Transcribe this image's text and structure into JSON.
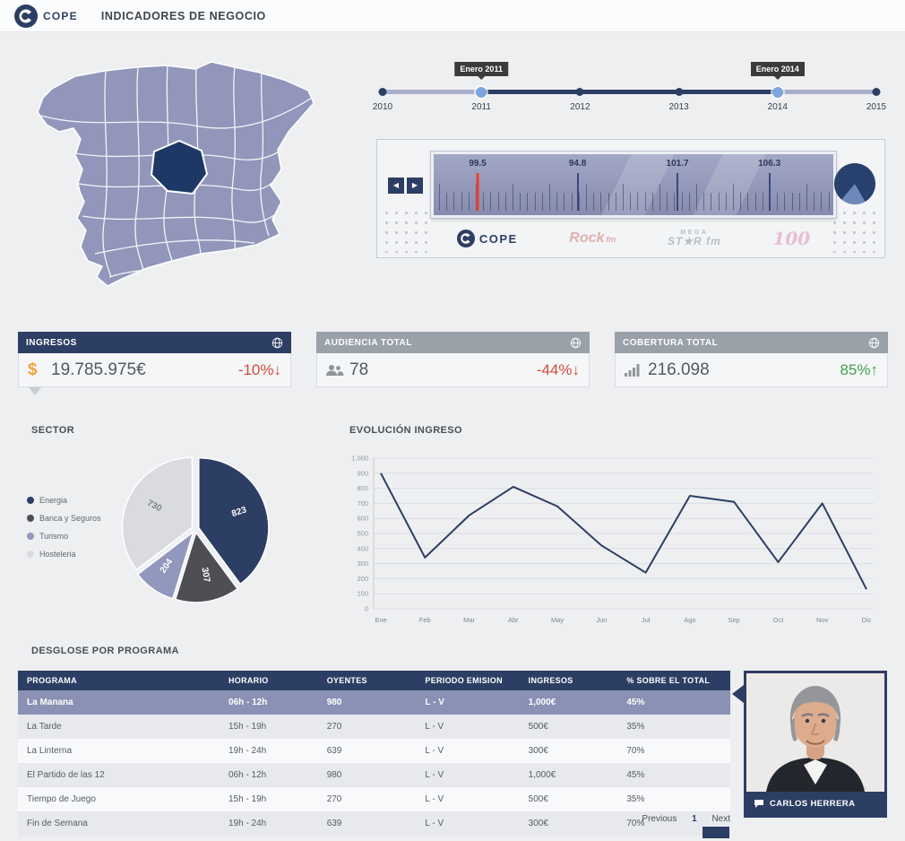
{
  "header": {
    "logo_text": "COPE",
    "title": "INDICADORES DE NEGOCIO"
  },
  "icons": {
    "prev": "◀",
    "next": "▶",
    "up": "↑",
    "down": "↓",
    "dollar": "$"
  },
  "timeline": {
    "years": [
      "2010",
      "2011",
      "2012",
      "2013",
      "2014",
      "2015"
    ],
    "selected_range": [
      1,
      4
    ],
    "tooltips": [
      {
        "label": "Enero 2011",
        "year_index": 1
      },
      {
        "label": "Enero 2014",
        "year_index": 4
      }
    ]
  },
  "tuner": {
    "frequencies": [
      {
        "value": "99.5",
        "position_pct": 11,
        "active": true
      },
      {
        "value": "94.8",
        "position_pct": 36,
        "active": false
      },
      {
        "value": "101.7",
        "position_pct": 61,
        "active": false
      },
      {
        "value": "106.3",
        "position_pct": 84,
        "active": false
      }
    ],
    "stations": [
      "COPE",
      "Rock fm",
      "MEGA STAR fm",
      "100"
    ]
  },
  "kpis": [
    {
      "title": "INGRESOS",
      "icon": "dollar",
      "value": "19.785.975€",
      "delta": "-10%",
      "direction": "down",
      "delta_color": "#d5483a",
      "header_style": "dark"
    },
    {
      "title": "AUDIENCIA TOTAL",
      "icon": "people",
      "value": "78",
      "delta": "-44%",
      "direction": "down",
      "delta_color": "#d5483a",
      "header_style": "gray"
    },
    {
      "title": "COBERTURA TOTAL",
      "icon": "signal",
      "value": "216.098",
      "delta": "85%",
      "direction": "up",
      "delta_color": "#44a04a",
      "header_style": "gray"
    }
  ],
  "chart_data": [
    {
      "type": "pie",
      "title": "SECTOR",
      "labels": [
        "Energia",
        "Banca y Seguros",
        "Turismo",
        "Hosteleria"
      ],
      "values": [
        823,
        307,
        204,
        730
      ],
      "colors": [
        "#2d3e64",
        "#4e4f55",
        "#9197bd",
        "#d9dbdf"
      ],
      "legend_position": "left"
    },
    {
      "type": "line",
      "title": "EVOLUCIÓN INGRESO",
      "categories": [
        "Ene",
        "Feb",
        "Mar",
        "Abr",
        "May",
        "Jun",
        "Jul",
        "Ago",
        "Sep",
        "Oct",
        "Nov",
        "Dic"
      ],
      "values": [
        900,
        340,
        620,
        810,
        680,
        420,
        240,
        750,
        710,
        310,
        700,
        130
      ],
      "ylim": [
        0,
        1000
      ],
      "ytick_step": 100,
      "grid": true,
      "line_color": "#2d3e64"
    }
  ],
  "table": {
    "title": "DESGLOSE POR PROGRAMA",
    "columns": [
      "PROGRAMA",
      "HORARIO",
      "OYENTES",
      "PERIODO EMISION",
      "INGRESOS",
      "% SOBRE EL TOTAL"
    ],
    "rows": [
      [
        "La Manana",
        "06h - 12h",
        "980",
        "L - V",
        "1,000€",
        "45%"
      ],
      [
        "La Tarde",
        "15h - 19h",
        "270",
        "L - V",
        "500€",
        "35%"
      ],
      [
        "La Linterna",
        "19h - 24h",
        "639",
        "L - V",
        "300€",
        "70%"
      ],
      [
        "El Partido de las 12",
        "06h - 12h",
        "980",
        "L - V",
        "1,000€",
        "45%"
      ],
      [
        "Tiempo de Juego",
        "15h - 19h",
        "270",
        "L - V",
        "500€",
        "35%"
      ],
      [
        "Fin de Semana",
        "19h - 24h",
        "639",
        "L - V",
        "300€",
        "70%"
      ]
    ],
    "highlighted_row": 0
  },
  "pagination": {
    "previous": "Previous",
    "page": "1",
    "next": "Next"
  },
  "presenter": {
    "name": "CARLOS HERRERA"
  },
  "colors": {
    "navy": "#2d3e64",
    "map_fill": "#9196ba",
    "map_selected": "#1d3865",
    "red": "#d5483a",
    "green": "#44a04a",
    "row_highlight": "#8a91b4",
    "kpi_gray_header": "#9aa1a9",
    "timeline_handle": "#7ba7dc",
    "needle_red": "#e8402a"
  }
}
